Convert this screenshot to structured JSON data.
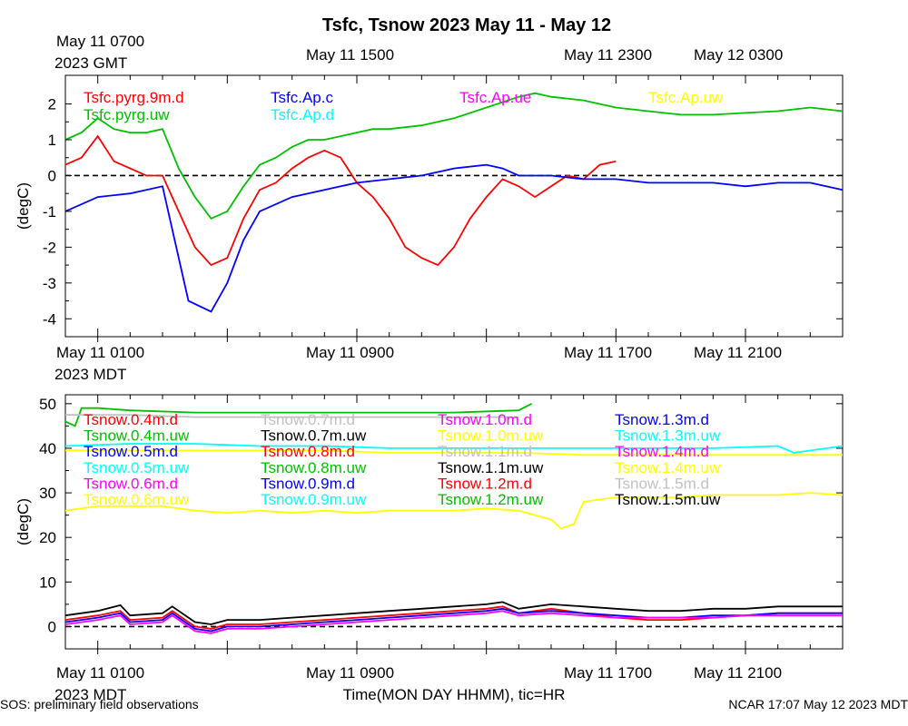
{
  "title": "Tsfc, Tsnow 2023 May 11 - May 12",
  "footer_left": "SOS: preliminary field observations",
  "footer_right": "NCAR 17:07 May 12 2023 MDT",
  "x_label": "Time(MON DAY HHMM), tic=HR",
  "top_axis": {
    "year_label": "2023 GMT",
    "tick_labels": [
      "May 11 0700",
      "May 11 1500",
      "May 11 2300",
      "May 12 0300"
    ]
  },
  "bottom_axis": {
    "year_label": "2023 MDT",
    "tick_labels": [
      "May 11 0100",
      "May 11 0900",
      "May 11 1700",
      "May 11 2100"
    ]
  },
  "chart_data": [
    {
      "type": "line",
      "ylabel": "(degC)",
      "ylim": [
        -4.5,
        2.8
      ],
      "yticks": [
        "-4",
        "-3",
        "-2",
        "-1",
        "0",
        "1",
        "2"
      ],
      "xlim_hours": [
        0,
        24
      ],
      "reference_line": 0,
      "colors": {
        "Tsfc.pyrg.9m.d": "#ff0000",
        "Tsfc.pyrg.uw": "#00c000",
        "Tsfc.Ap.c": "#0000ff",
        "Tsfc.Ap.d": "#00ffff",
        "Tsfc.Ap.ue": "#ff00ff",
        "Tsfc.Ap.uw": "#ffff00"
      },
      "legend": [
        {
          "name": "Tsfc.pyrg.9m.d",
          "color": "#ff0000"
        },
        {
          "name": "Tsfc.pyrg.uw",
          "color": "#00c000"
        },
        {
          "name": "Tsfc.Ap.c",
          "color": "#0000ff"
        },
        {
          "name": "Tsfc.Ap.d",
          "color": "#00ffff"
        },
        {
          "name": "Tsfc.Ap.ue",
          "color": "#ff00ff"
        },
        {
          "name": "Tsfc.Ap.uw",
          "color": "#ffff00"
        }
      ],
      "series": [
        {
          "name": "Tsfc.pyrg.9m.d",
          "color": "#ff0000",
          "x": [
            0,
            0.5,
            1,
            1.5,
            2,
            2.5,
            3,
            3.5,
            4,
            4.5,
            5,
            5.5,
            6,
            6.5,
            7,
            7.5,
            8,
            8.5,
            9,
            9.5,
            10,
            10.5,
            11,
            11.5,
            12,
            12.5,
            13,
            13.5,
            14,
            14.5,
            15,
            15.5,
            16,
            16.5,
            17
          ],
          "y": [
            0.3,
            0.5,
            1.1,
            0.4,
            0.2,
            0.0,
            0.0,
            -1.0,
            -2.0,
            -2.5,
            -2.3,
            -1.2,
            -0.4,
            -0.2,
            0.2,
            0.5,
            0.7,
            0.5,
            -0.2,
            -0.6,
            -1.2,
            -2.0,
            -2.3,
            -2.5,
            -2.0,
            -1.2,
            -0.6,
            -0.1,
            -0.3,
            -0.6,
            -0.3,
            0.0,
            -0.1,
            0.3,
            0.4
          ]
        },
        {
          "name": "Tsfc.pyrg.uw",
          "color": "#00c000",
          "x": [
            0,
            0.5,
            1,
            1.5,
            2,
            2.5,
            3,
            3.5,
            4,
            4.5,
            5,
            5.5,
            6,
            6.5,
            7,
            7.5,
            8,
            8.5,
            9,
            9.5,
            10,
            11,
            12,
            13,
            14,
            14.5,
            15,
            16,
            17,
            18,
            19,
            20,
            21,
            22,
            23,
            24
          ],
          "y": [
            1.0,
            1.2,
            1.6,
            1.3,
            1.2,
            1.2,
            1.3,
            0.2,
            -0.6,
            -1.2,
            -1.0,
            -0.3,
            0.3,
            0.5,
            0.8,
            1.0,
            1.0,
            1.1,
            1.2,
            1.3,
            1.3,
            1.4,
            1.6,
            1.9,
            2.2,
            2.3,
            2.2,
            2.1,
            1.9,
            1.8,
            1.7,
            1.7,
            1.75,
            1.8,
            1.9,
            1.8
          ]
        },
        {
          "name": "Tsfc.Ap.c",
          "color": "#0000ff",
          "x": [
            0,
            1,
            2,
            3,
            3.8,
            4.5,
            5,
            5.5,
            6,
            7,
            8,
            8.5,
            9,
            10,
            11,
            12,
            13,
            13.5,
            14,
            15,
            16,
            17,
            18,
            19,
            20,
            21,
            22,
            23,
            24
          ],
          "y": [
            -1.0,
            -0.6,
            -0.5,
            -0.3,
            -3.5,
            -3.8,
            -3.0,
            -1.8,
            -1.0,
            -0.6,
            -0.4,
            -0.3,
            -0.2,
            -0.1,
            0.0,
            0.2,
            0.3,
            0.2,
            0.0,
            0.0,
            -0.1,
            -0.1,
            -0.2,
            -0.2,
            -0.2,
            -0.3,
            -0.2,
            -0.2,
            -0.4
          ]
        }
      ]
    },
    {
      "type": "line",
      "ylabel": "(degC)",
      "ylim": [
        -5,
        52
      ],
      "yticks": [
        "0",
        "10",
        "20",
        "30",
        "40",
        "50"
      ],
      "xlim_hours": [
        0,
        24
      ],
      "reference_line": 0,
      "legend": [
        {
          "name": "Tsnow.0.4m.d",
          "color": "#ff0000"
        },
        {
          "name": "Tsnow.0.4m.uw",
          "color": "#00c000"
        },
        {
          "name": "Tsnow.0.5m.d",
          "color": "#0000ff"
        },
        {
          "name": "Tsnow.0.5m.uw",
          "color": "#00ffff"
        },
        {
          "name": "Tsnow.0.6m.d",
          "color": "#ff00ff"
        },
        {
          "name": "Tsnow.0.6m.uw",
          "color": "#ffff00"
        },
        {
          "name": "Tsnow.0.7m.d",
          "color": "#c0c0c0"
        },
        {
          "name": "Tsnow.0.7m.uw",
          "color": "#000000"
        },
        {
          "name": "Tsnow.0.8m.d",
          "color": "#ff0000"
        },
        {
          "name": "Tsnow.0.8m.uw",
          "color": "#00c000"
        },
        {
          "name": "Tsnow.0.9m.d",
          "color": "#0000ff"
        },
        {
          "name": "Tsnow.0.9m.uw",
          "color": "#00ffff"
        },
        {
          "name": "Tsnow.1.0m.d",
          "color": "#ff00ff"
        },
        {
          "name": "Tsnow.1.0m.uw",
          "color": "#ffff00"
        },
        {
          "name": "Tsnow.1.1m.d",
          "color": "#c0c0c0"
        },
        {
          "name": "Tsnow.1.1m.uw",
          "color": "#000000"
        },
        {
          "name": "Tsnow.1.2m.d",
          "color": "#ff0000"
        },
        {
          "name": "Tsnow.1.2m.uw",
          "color": "#00c000"
        },
        {
          "name": "Tsnow.1.3m.d",
          "color": "#0000ff"
        },
        {
          "name": "Tsnow.1.3m.uw",
          "color": "#00ffff"
        },
        {
          "name": "Tsnow.1.4m.d",
          "color": "#ff00ff"
        },
        {
          "name": "Tsnow.1.4m.uw",
          "color": "#ffff00"
        },
        {
          "name": "Tsnow.1.5m.d",
          "color": "#c0c0c0"
        },
        {
          "name": "Tsnow.1.5m.uw",
          "color": "#000000"
        }
      ],
      "series": [
        {
          "name": "Tsnow.0.4m.uw",
          "color": "#00c000",
          "x": [
            0,
            0.3,
            0.5,
            1,
            2,
            4,
            6,
            8,
            10,
            12,
            14,
            14.4
          ],
          "y": [
            46,
            45,
            49,
            49,
            48.5,
            48,
            48,
            48,
            48,
            48,
            48.5,
            50
          ]
        },
        {
          "name": "Tsnow.0.7m.d",
          "color": "#c0c0c0",
          "x": [
            0,
            2,
            4,
            6,
            8,
            10,
            12,
            14
          ],
          "y": [
            47.5,
            47.5,
            47,
            47,
            47,
            47,
            47,
            47
          ]
        },
        {
          "name": "Tsnow.1.3m.uw",
          "color": "#00ffff",
          "x": [
            0,
            2,
            4,
            6,
            8,
            10,
            12,
            14,
            16,
            18,
            20,
            22,
            22.5,
            24
          ],
          "y": [
            40.5,
            41,
            41,
            40.5,
            40.5,
            40,
            40,
            40,
            40,
            40,
            40,
            40.5,
            39,
            40.5
          ]
        },
        {
          "name": "Tsnow.1.4m.uw",
          "color": "#ffff00",
          "x": [
            0,
            4,
            8,
            10,
            12,
            14,
            16,
            18,
            20,
            22,
            24
          ],
          "y": [
            39.5,
            39.5,
            39.5,
            39,
            39,
            39,
            38.5,
            38.5,
            38.5,
            38.5,
            38.5
          ]
        },
        {
          "name": "Tsnow.0.6m.uw",
          "color": "#ffff00",
          "x": [
            0,
            1,
            2,
            3,
            4,
            5,
            6,
            7,
            8,
            9,
            10,
            11,
            12,
            13,
            14,
            14.5,
            15,
            15.3,
            15.7,
            16,
            17,
            18,
            19,
            20,
            21,
            22,
            23,
            24
          ],
          "y": [
            26,
            27,
            27,
            27,
            26,
            25.5,
            26,
            25.5,
            26,
            25.5,
            26,
            26,
            26,
            26.5,
            26,
            25,
            24,
            22,
            23,
            28,
            29,
            29,
            29,
            29.5,
            29.5,
            29.5,
            30,
            29.5
          ]
        },
        {
          "name": "Tsnow.0.7m.uw",
          "color": "#000000",
          "x": [
            0,
            1,
            1.7,
            2,
            3,
            3.3,
            4,
            4.5,
            5,
            6,
            7,
            8,
            9,
            10,
            11,
            12,
            13,
            13.5,
            14,
            15,
            16,
            17,
            18,
            19,
            20,
            21,
            22,
            23,
            24
          ],
          "y": [
            2.5,
            3.5,
            4.8,
            2.5,
            3,
            4.5,
            1,
            0.5,
            1.5,
            1.5,
            2,
            2.5,
            3,
            3.5,
            4,
            4.5,
            5,
            5.5,
            4,
            5,
            4.5,
            4,
            3.5,
            3.5,
            4,
            4,
            4.5,
            4.5,
            4.5
          ]
        },
        {
          "name": "Tsnow.0.4m.d",
          "color": "#ff0000",
          "x": [
            0,
            1,
            1.7,
            2,
            3,
            3.3,
            4,
            4.5,
            5,
            6,
            7,
            8,
            9,
            10,
            11,
            12,
            13,
            13.5,
            14,
            15,
            16,
            17,
            18,
            19,
            20,
            21,
            22,
            23,
            24
          ],
          "y": [
            1.5,
            2.5,
            3.5,
            1.5,
            2,
            3.5,
            0,
            -0.5,
            0.5,
            0.5,
            1,
            1.5,
            2,
            2.5,
            3,
            3.5,
            4,
            4.5,
            3,
            4,
            3,
            2,
            1.5,
            1.5,
            2,
            2.5,
            3,
            3,
            3
          ]
        },
        {
          "name": "Tsnow.0.5m.d",
          "color": "#0000ff",
          "x": [
            0,
            1,
            1.7,
            2,
            3,
            3.3,
            4,
            4.5,
            5,
            6,
            7,
            8,
            9,
            10,
            11,
            12,
            13,
            13.5,
            14,
            15,
            16,
            17,
            18,
            19,
            20,
            21,
            22,
            23,
            24
          ],
          "y": [
            1,
            2,
            3,
            1,
            1.5,
            3,
            -0.5,
            -1,
            0,
            0,
            0.5,
            1,
            1.5,
            2,
            2.5,
            3,
            3.5,
            4,
            3,
            3.5,
            3,
            2.5,
            2,
            2,
            2.5,
            2.5,
            3,
            3,
            3
          ]
        },
        {
          "name": "Tsnow.0.6m.d",
          "color": "#ff00ff",
          "x": [
            0,
            1,
            1.7,
            2,
            3,
            3.3,
            4,
            4.5,
            5,
            6,
            7,
            8,
            9,
            10,
            11,
            12,
            13,
            13.5,
            14,
            15,
            16,
            17,
            18,
            19,
            20,
            21,
            22,
            23,
            24
          ],
          "y": [
            0.5,
            1.5,
            2.5,
            0.5,
            1,
            2.5,
            -1,
            -1.5,
            -0.5,
            -0.5,
            0,
            0.5,
            1,
            1.5,
            2,
            2.5,
            3,
            3.5,
            2.5,
            3,
            2.5,
            2,
            2,
            2,
            2,
            2.5,
            2.5,
            2.5,
            2.5
          ]
        }
      ]
    }
  ]
}
